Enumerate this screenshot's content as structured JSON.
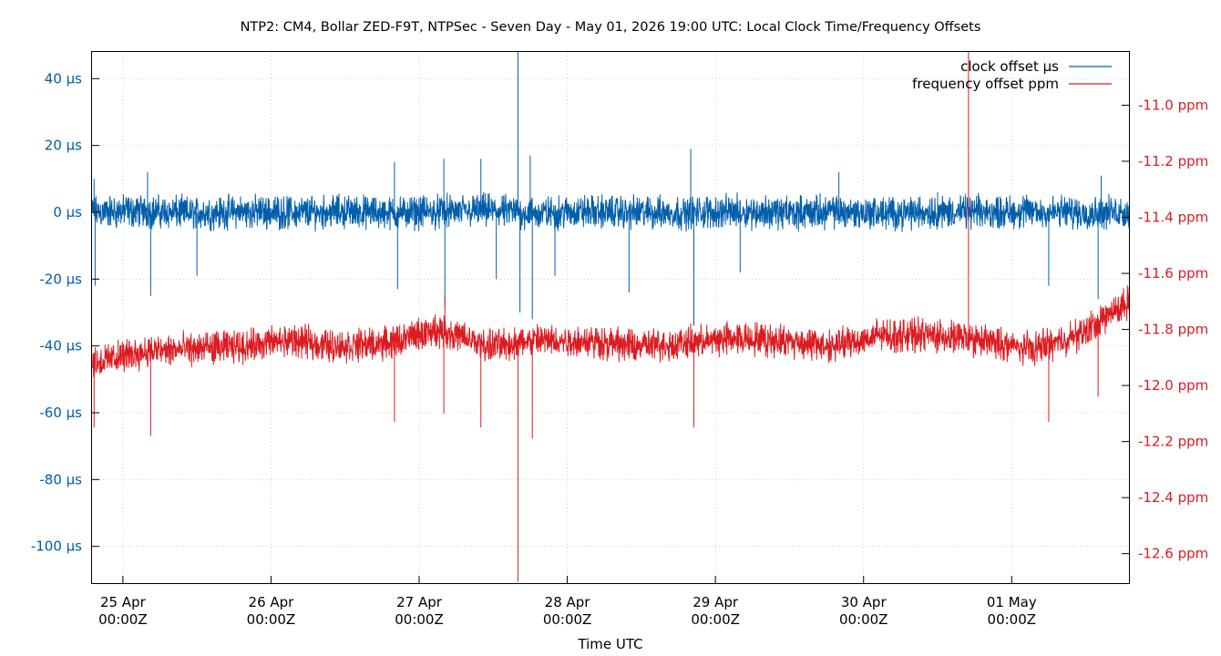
{
  "chart_data": {
    "type": "line",
    "title": "NTP2: CM4, Bollar ZED-F9T, NTPSec - Seven Day - May 01, 2026 19:00 UTC: Local Clock Time/Frequency Offsets",
    "xlabel": "Time UTC",
    "x_range": [
      "2026-04-24T19:00Z",
      "2026-05-01T19:00Z"
    ],
    "x_ticks": [
      {
        "date": "2026-04-25T00:00Z",
        "line1": "25 Apr",
        "line2": "00:00Z"
      },
      {
        "date": "2026-04-26T00:00Z",
        "line1": "26 Apr",
        "line2": "00:00Z"
      },
      {
        "date": "2026-04-27T00:00Z",
        "line1": "27 Apr",
        "line2": "00:00Z"
      },
      {
        "date": "2026-04-28T00:00Z",
        "line1": "28 Apr",
        "line2": "00:00Z"
      },
      {
        "date": "2026-04-29T00:00Z",
        "line1": "29 Apr",
        "line2": "00:00Z"
      },
      {
        "date": "2026-04-30T00:00Z",
        "line1": "30 Apr",
        "line2": "00:00Z"
      },
      {
        "date": "2026-05-01T00:00Z",
        "line1": "01 May",
        "line2": "00:00Z"
      }
    ],
    "y_left": {
      "ylim": [
        -111,
        48
      ],
      "ticks": [
        40,
        20,
        0,
        -20,
        -40,
        -60,
        -80,
        -100
      ],
      "tick_labels": [
        "40 µs",
        "20 µs",
        "0 µs",
        "-20 µs",
        "-40 µs",
        "-60 µs",
        "-80 µs",
        "-100 µs"
      ]
    },
    "y_right": {
      "ylim": [
        -12.705,
        -10.81
      ],
      "ticks": [
        -11.0,
        -11.2,
        -11.4,
        -11.6,
        -11.8,
        -12.0,
        -12.2,
        -12.4,
        -12.6
      ],
      "tick_labels": [
        "-11.0 ppm",
        "-11.2 ppm",
        "-11.4 ppm",
        "-11.6 ppm",
        "-11.8 ppm",
        "-12.0 ppm",
        "-12.2 ppm",
        "-12.4 ppm",
        "-12.6 ppm"
      ]
    },
    "grid": true,
    "legend_position": "top-right",
    "series": [
      {
        "name": "clock offset µs",
        "axis": "left",
        "color": "#005eab",
        "x": [
          "2026-04-24T19:00Z",
          "2026-04-25T03:00Z",
          "2026-04-25T11:00Z",
          "2026-04-25T19:00Z",
          "2026-04-26T03:00Z",
          "2026-04-26T11:00Z",
          "2026-04-26T19:00Z",
          "2026-04-27T03:00Z",
          "2026-04-27T11:00Z",
          "2026-04-27T19:00Z",
          "2026-04-28T03:00Z",
          "2026-04-28T11:00Z",
          "2026-04-28T19:00Z",
          "2026-04-29T03:00Z",
          "2026-04-29T11:00Z",
          "2026-04-29T19:00Z",
          "2026-04-30T03:00Z",
          "2026-04-30T11:00Z",
          "2026-04-30T19:00Z",
          "2026-05-01T03:00Z",
          "2026-05-01T11:00Z",
          "2026-05-01T19:00Z"
        ],
        "y": [
          0,
          0.4,
          -0.3,
          0.2,
          -0.1,
          0.3,
          -0.2,
          0.1,
          0.5,
          -0.4,
          0.2,
          0,
          -0.2,
          0.3,
          -0.1,
          0.2,
          -0.3,
          0.1,
          0,
          0.2,
          -0.1,
          0
        ],
        "band": [
          -6,
          6
        ],
        "spikes": [
          {
            "date": "2026-04-24T19:20Z",
            "value": 10
          },
          {
            "date": "2026-04-24T19:30Z",
            "value": -22
          },
          {
            "date": "2026-04-25T04:00Z",
            "value": 12
          },
          {
            "date": "2026-04-25T04:30Z",
            "value": -25
          },
          {
            "date": "2026-04-25T12:00Z",
            "value": -19
          },
          {
            "date": "2026-04-26T20:00Z",
            "value": 15
          },
          {
            "date": "2026-04-26T20:30Z",
            "value": -23
          },
          {
            "date": "2026-04-27T04:00Z",
            "value": 16
          },
          {
            "date": "2026-04-27T04:10Z",
            "value": -28
          },
          {
            "date": "2026-04-27T10:00Z",
            "value": 16
          },
          {
            "date": "2026-04-27T12:30Z",
            "value": -20
          },
          {
            "date": "2026-04-27T16:00Z",
            "value": 48
          },
          {
            "date": "2026-04-27T16:20Z",
            "value": -30
          },
          {
            "date": "2026-04-27T18:00Z",
            "value": 17
          },
          {
            "date": "2026-04-27T18:20Z",
            "value": -32
          },
          {
            "date": "2026-04-28T20:00Z",
            "value": 19
          },
          {
            "date": "2026-04-28T20:30Z",
            "value": -34
          },
          {
            "date": "2026-04-27T22:00Z",
            "value": -19
          },
          {
            "date": "2026-04-28T10:00Z",
            "value": -24
          },
          {
            "date": "2026-04-29T04:00Z",
            "value": -18
          },
          {
            "date": "2026-04-29T20:00Z",
            "value": 12
          },
          {
            "date": "2026-04-30T12:00Z",
            "value": 6
          },
          {
            "date": "2026-05-01T06:00Z",
            "value": -22
          },
          {
            "date": "2026-05-01T14:00Z",
            "value": -26
          },
          {
            "date": "2026-05-01T14:30Z",
            "value": 11
          }
        ]
      },
      {
        "name": "frequency offset ppm",
        "axis": "right",
        "color": "#dc1b21",
        "x": [
          "2026-04-24T19:00Z",
          "2026-04-25T03:00Z",
          "2026-04-25T11:00Z",
          "2026-04-25T19:00Z",
          "2026-04-26T03:00Z",
          "2026-04-26T11:00Z",
          "2026-04-26T19:00Z",
          "2026-04-27T03:00Z",
          "2026-04-27T11:00Z",
          "2026-04-27T19:00Z",
          "2026-04-28T03:00Z",
          "2026-04-28T11:00Z",
          "2026-04-28T19:00Z",
          "2026-04-29T03:00Z",
          "2026-04-29T11:00Z",
          "2026-04-29T19:00Z",
          "2026-04-30T03:00Z",
          "2026-04-30T11:00Z",
          "2026-04-30T19:00Z",
          "2026-05-01T03:00Z",
          "2026-05-01T11:00Z",
          "2026-05-01T19:00Z"
        ],
        "y": [
          -11.92,
          -11.88,
          -11.87,
          -11.86,
          -11.84,
          -11.86,
          -11.85,
          -11.8,
          -11.86,
          -11.84,
          -11.84,
          -11.86,
          -11.85,
          -11.83,
          -11.84,
          -11.86,
          -11.82,
          -11.82,
          -11.84,
          -11.87,
          -11.82,
          -11.7
        ],
        "band": [
          -0.07,
          0.07
        ],
        "spikes": [
          {
            "date": "2026-04-24T19:20Z",
            "value": -12.15
          },
          {
            "date": "2026-04-25T04:30Z",
            "value": -12.18
          },
          {
            "date": "2026-04-26T20:00Z",
            "value": -12.13
          },
          {
            "date": "2026-04-27T04:00Z",
            "value": -12.1
          },
          {
            "date": "2026-04-27T04:10Z",
            "value": -11.68
          },
          {
            "date": "2026-04-27T10:00Z",
            "value": -12.15
          },
          {
            "date": "2026-04-27T16:00Z",
            "value": -12.7
          },
          {
            "date": "2026-04-27T18:20Z",
            "value": -12.19
          },
          {
            "date": "2026-04-28T20:30Z",
            "value": -12.15
          },
          {
            "date": "2026-04-30T17:00Z",
            "value": -10.81
          },
          {
            "date": "2026-05-01T06:00Z",
            "value": -12.13
          },
          {
            "date": "2026-05-01T14:00Z",
            "value": -12.04
          },
          {
            "date": "2026-05-01T19:00Z",
            "value": -11.65
          }
        ]
      }
    ]
  }
}
